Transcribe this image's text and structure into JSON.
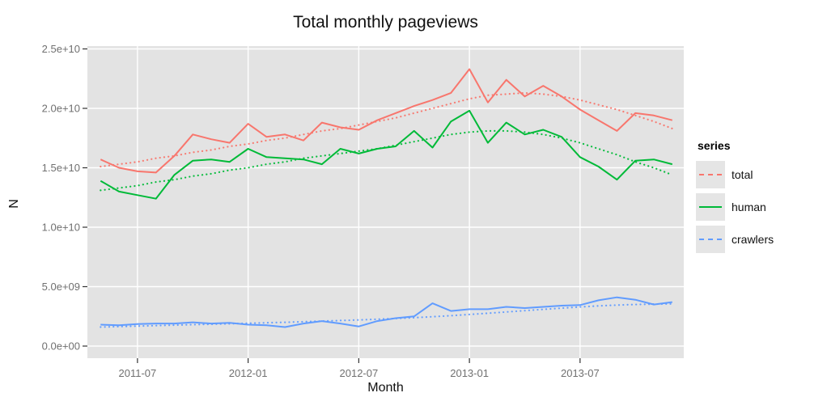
{
  "legend": {
    "title": "series",
    "entries": [
      {
        "label": "total",
        "color": "#F8766D",
        "line_style": "dashed"
      },
      {
        "label": "human",
        "color": "#00BA38",
        "line_style": "solid"
      },
      {
        "label": "crawlers",
        "color": "#619CFF",
        "line_style": "dashed"
      }
    ]
  },
  "chart_data": {
    "type": "line",
    "title": "Total monthly pageviews",
    "xlabel": "Month",
    "ylabel": "N",
    "ylim": [
      0,
      25000000000.0
    ],
    "grid": true,
    "legend_position": "right",
    "panel_background": "#E3E3E3",
    "gridline_color": "#FFFFFF",
    "tick_color": "#333333",
    "tick_label_color": "#707070",
    "x": [
      "2011-05",
      "2011-06",
      "2011-07",
      "2011-08",
      "2011-09",
      "2011-10",
      "2011-11",
      "2011-12",
      "2012-01",
      "2012-02",
      "2012-03",
      "2012-04",
      "2012-05",
      "2012-06",
      "2012-07",
      "2012-08",
      "2012-09",
      "2012-10",
      "2012-11",
      "2012-12",
      "2013-01",
      "2013-02",
      "2013-03",
      "2013-04",
      "2013-05",
      "2013-06",
      "2013-07",
      "2013-08",
      "2013-09",
      "2013-10",
      "2013-11",
      "2013-12"
    ],
    "x_tick_labels": [
      "2011-07",
      "2012-01",
      "2012-07",
      "2013-01",
      "2013-07"
    ],
    "y_ticks": [
      {
        "label": "0.0e+00",
        "value": 0
      },
      {
        "label": "5.0e+09",
        "value": 5000000000.0
      },
      {
        "label": "1.0e+10",
        "value": 10000000000.0
      },
      {
        "label": "1.5e+10",
        "value": 15000000000.0
      },
      {
        "label": "2.0e+10",
        "value": 20000000000.0
      },
      {
        "label": "2.5e+10",
        "value": 25000000000.0
      }
    ],
    "series": [
      {
        "name": "total",
        "color": "#F8766D",
        "solid_line": true,
        "trend_line": "dotted",
        "values": [
          15700000000.0,
          15000000000.0,
          14700000000.0,
          14600000000.0,
          16000000000.0,
          17800000000.0,
          17400000000.0,
          17100000000.0,
          18700000000.0,
          17600000000.0,
          17800000000.0,
          17300000000.0,
          18800000000.0,
          18400000000.0,
          18200000000.0,
          19000000000.0,
          19600000000.0,
          20200000000.0,
          20700000000.0,
          21300000000.0,
          23300000000.0,
          20500000000.0,
          22400000000.0,
          21000000000.0,
          21900000000.0,
          21000000000.0,
          19900000000.0,
          19000000000.0,
          18100000000.0,
          19600000000.0,
          19400000000.0,
          19000000000.0
        ],
        "trend": [
          15100000000.0,
          15300000000.0,
          15500000000.0,
          15800000000.0,
          16000000000.0,
          16300000000.0,
          16500000000.0,
          16800000000.0,
          17000000000.0,
          17300000000.0,
          17500000000.0,
          17800000000.0,
          18100000000.0,
          18300000000.0,
          18600000000.0,
          18900000000.0,
          19200000000.0,
          19600000000.0,
          20000000000.0,
          20400000000.0,
          20800000000.0,
          21100000000.0,
          21200000000.0,
          21300000000.0,
          21200000000.0,
          21000000000.0,
          20700000000.0,
          20300000000.0,
          19900000000.0,
          19400000000.0,
          18900000000.0,
          18300000000.0
        ]
      },
      {
        "name": "human",
        "color": "#00BA38",
        "solid_line": true,
        "trend_line": "dotted",
        "values": [
          13900000000.0,
          13000000000.0,
          12700000000.0,
          12400000000.0,
          14400000000.0,
          15600000000.0,
          15700000000.0,
          15500000000.0,
          16600000000.0,
          15900000000.0,
          15800000000.0,
          15700000000.0,
          15300000000.0,
          16600000000.0,
          16200000000.0,
          16600000000.0,
          16800000000.0,
          18100000000.0,
          16700000000.0,
          18900000000.0,
          19800000000.0,
          17100000000.0,
          18800000000.0,
          17800000000.0,
          18200000000.0,
          17600000000.0,
          15900000000.0,
          15100000000.0,
          14000000000.0,
          15600000000.0,
          15700000000.0,
          15300000000.0
        ],
        "trend": [
          13100000000.0,
          13300000000.0,
          13500000000.0,
          13800000000.0,
          14000000000.0,
          14300000000.0,
          14500000000.0,
          14800000000.0,
          15000000000.0,
          15300000000.0,
          15500000000.0,
          15800000000.0,
          16000000000.0,
          16200000000.0,
          16400000000.0,
          16600000000.0,
          16900000000.0,
          17200000000.0,
          17500000000.0,
          17800000000.0,
          18000000000.0,
          18100000000.0,
          18100000000.0,
          18000000000.0,
          17800000000.0,
          17500000000.0,
          17100000000.0,
          16600000000.0,
          16100000000.0,
          15500000000.0,
          15000000000.0,
          14400000000.0
        ]
      },
      {
        "name": "crawlers",
        "color": "#619CFF",
        "solid_line": true,
        "trend_line": "dotted",
        "values": [
          1800000000.0,
          1750000000.0,
          1850000000.0,
          1900000000.0,
          1900000000.0,
          2000000000.0,
          1900000000.0,
          1950000000.0,
          1800000000.0,
          1750000000.0,
          1600000000.0,
          1900000000.0,
          2100000000.0,
          1900000000.0,
          1650000000.0,
          2100000000.0,
          2350000000.0,
          2500000000.0,
          3600000000.0,
          2950000000.0,
          3100000000.0,
          3100000000.0,
          3300000000.0,
          3200000000.0,
          3300000000.0,
          3400000000.0,
          3450000000.0,
          3850000000.0,
          4100000000.0,
          3900000000.0,
          3500000000.0,
          3700000000.0
        ],
        "trend": [
          1600000000.0,
          1640000000.0,
          1680000000.0,
          1720000000.0,
          1760000000.0,
          1800000000.0,
          1840000000.0,
          1880000000.0,
          1920000000.0,
          1960000000.0,
          2000000000.0,
          2050000000.0,
          2100000000.0,
          2150000000.0,
          2200000000.0,
          2260000000.0,
          2320000000.0,
          2390000000.0,
          2470000000.0,
          2560000000.0,
          2660000000.0,
          2760000000.0,
          2870000000.0,
          2980000000.0,
          3090000000.0,
          3190000000.0,
          3290000000.0,
          3380000000.0,
          3450000000.0,
          3500000000.0,
          3530000000.0,
          3550000000.0
        ]
      }
    ]
  }
}
